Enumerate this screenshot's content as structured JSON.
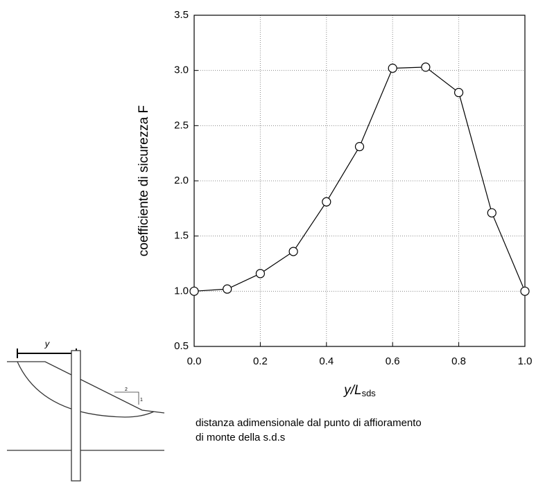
{
  "chart_data": {
    "type": "line",
    "y_label": "coefficiente di sicurezza F",
    "x_label": {
      "main": "y/L",
      "sub": "sds"
    },
    "caption": [
      "distanza adimensionale dal punto di affioramento",
      "di monte della s.d.s"
    ],
    "x": [
      0,
      0.1,
      0.2,
      0.3,
      0.4,
      0.5,
      0.6,
      0.7,
      0.8,
      0.9,
      1.0
    ],
    "series": [
      {
        "color": "#000000",
        "values": [
          1.0,
          1.02,
          1.16,
          1.36,
          1.81,
          2.31,
          3.02,
          3.03,
          2.8,
          1.71,
          1.0
        ]
      }
    ],
    "xlim": [
      0,
      1
    ],
    "ylim": [
      0.5,
      3.5
    ],
    "xticks": [
      {
        "value": 0,
        "label": "0.0"
      },
      0.2,
      0.4,
      0.6,
      0.8,
      {
        "value": 1,
        "label": "1.0"
      }
    ],
    "yticks": [
      0.5,
      {
        "value": 1,
        "label": "1.0"
      },
      1.5,
      {
        "value": 2,
        "label": "2.0"
      },
      2.5,
      {
        "value": 3,
        "label": "3.0"
      },
      3.5
    ],
    "grid": true
  },
  "inset": {
    "y_label": "y",
    "slope_labels": [
      "2",
      "1"
    ]
  }
}
